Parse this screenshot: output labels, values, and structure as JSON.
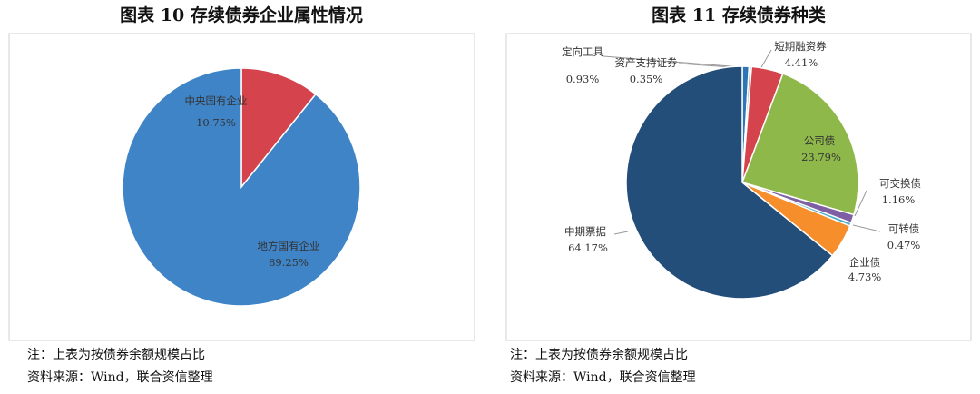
{
  "chart_data": [
    {
      "type": "pie",
      "title": "图表 10 存续债券企业属性情况",
      "categories": [
        "中央国有企业",
        "地方国有企业"
      ],
      "values": [
        10.75,
        89.25
      ],
      "value_labels": [
        "10.75%",
        "89.25%"
      ],
      "colors": [
        "#d5434c",
        "#3f84c6"
      ],
      "note": "注：上表为按债券余额规模占比",
      "source": "资料来源：Wind，联合资信整理"
    },
    {
      "type": "pie",
      "title": "图表 11 存续债券种类",
      "categories": [
        "定向工具",
        "资产支持证券",
        "短期融资券",
        "公司债",
        "可交换债",
        "可转债",
        "企业债",
        "中期票据"
      ],
      "values": [
        0.93,
        0.35,
        4.41,
        23.79,
        1.16,
        0.47,
        4.73,
        64.17
      ],
      "value_labels": [
        "0.93%",
        "0.35%",
        "4.41%",
        "23.79%",
        "1.16%",
        "0.47%",
        "4.73%",
        "64.17%"
      ],
      "colors": [
        "#2e75b6",
        "#a5a5a5",
        "#d5434c",
        "#8fb84a",
        "#7e5fa3",
        "#4bacc6",
        "#f68e2c",
        "#234e7a"
      ],
      "note": "注：上表为按债券余额规模占比",
      "source": "资料来源：Wind，联合资信整理"
    }
  ]
}
